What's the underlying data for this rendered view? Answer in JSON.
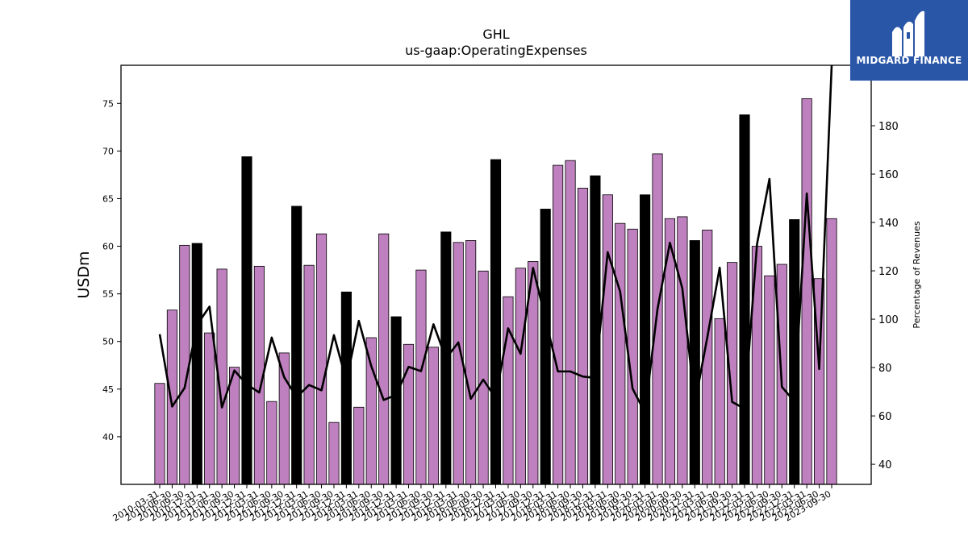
{
  "logo": {
    "text": "MIDGARD FINANCE"
  },
  "chart_data": {
    "type": "bar",
    "title": "GHL",
    "subtitle": "us-gaap:OperatingExpenses",
    "ylabel": "USDm",
    "y2label": "Percentage of Revenues",
    "ylim": [
      35,
      79
    ],
    "y2lim": [
      31.7,
      205
    ],
    "yticks": [
      40,
      45,
      50,
      55,
      60,
      65,
      70,
      75
    ],
    "y2ticks": [
      40,
      60,
      80,
      100,
      120,
      140,
      160,
      180
    ],
    "grid": false,
    "colors": {
      "quarter": "#bf80bf",
      "fiscal_year_end": "#000000",
      "line": "#000000"
    },
    "categories": [
      "2010-03-31",
      "2010-06-30",
      "2010-09-30",
      "2010-12-31",
      "2011-03-31",
      "2011-06-30",
      "2011-09-30",
      "2011-12-31",
      "2012-03-31",
      "2012-06-30",
      "2012-09-30",
      "2012-12-31",
      "2013-03-31",
      "2013-06-30",
      "2013-09-30",
      "2013-12-31",
      "2014-03-31",
      "2014-06-30",
      "2014-09-30",
      "2014-12-31",
      "2015-03-31",
      "2015-06-30",
      "2015-09-30",
      "2015-12-31",
      "2016-03-31",
      "2016-06-30",
      "2016-09-30",
      "2016-12-31",
      "2017-03-31",
      "2017-06-30",
      "2017-09-30",
      "2017-12-31",
      "2018-03-31",
      "2018-06-30",
      "2018-09-30",
      "2018-12-31",
      "2019-03-31",
      "2019-06-30",
      "2019-09-30",
      "2019-12-31",
      "2020-03-31",
      "2020-06-30",
      "2020-09-30",
      "2020-12-31",
      "2021-03-31",
      "2021-06-30",
      "2021-09-30",
      "2021-12-31",
      "2022-03-31",
      "2022-06-30",
      "2022-09-30",
      "2022-12-31",
      "2023-03-31",
      "2023-06-30",
      "2023-09-30"
    ],
    "series": [
      {
        "kind": "bar",
        "values": [
          45.6,
          53.3,
          60.1,
          60.3,
          50.9,
          57.6,
          47.3,
          69.4,
          57.9,
          43.7,
          48.8,
          64.2,
          58.0,
          61.3,
          41.5,
          55.2,
          43.1,
          50.4,
          61.3,
          52.6,
          49.7,
          57.5,
          49.4,
          61.5,
          60.4,
          60.6,
          57.4,
          69.1,
          54.7,
          57.7,
          58.4,
          63.9,
          68.5,
          69.0,
          66.1,
          67.4,
          65.4,
          62.4,
          61.8,
          65.4,
          69.7,
          62.9,
          63.1,
          60.6,
          61.7,
          52.4,
          58.3,
          73.8,
          60.0,
          56.9,
          58.1,
          62.8,
          75.5,
          56.6,
          62.9
        ],
        "fiscal_year_end": [
          false,
          false,
          false,
          true,
          false,
          false,
          false,
          true,
          false,
          false,
          false,
          true,
          false,
          false,
          false,
          true,
          false,
          false,
          false,
          true,
          false,
          false,
          false,
          true,
          false,
          false,
          false,
          true,
          false,
          false,
          false,
          true,
          false,
          false,
          false,
          true,
          false,
          false,
          false,
          true,
          false,
          false,
          false,
          true,
          false,
          false,
          false,
          true,
          false,
          false,
          false,
          true,
          false,
          false,
          false
        ]
      },
      {
        "kind": "line",
        "axis": "right",
        "values": [
          93.8,
          63.9,
          71.6,
          97.7,
          105.2,
          63.5,
          78.8,
          73.0,
          69.7,
          92.4,
          76.0,
          67.8,
          72.8,
          70.6,
          93.4,
          74.5,
          99.3,
          80.6,
          66.6,
          68.7,
          80.3,
          78.5,
          97.9,
          83.8,
          90.4,
          67.1,
          75.0,
          67.4,
          96.2,
          85.7,
          121.2,
          100.1,
          78.4,
          78.4,
          76.3,
          75.7,
          127.7,
          111.4,
          71.3,
          61.3,
          104.1,
          131.6,
          112.7,
          65.0,
          92.3,
          121.3,
          65.8,
          63.0,
          131.0,
          158.0,
          72.0,
          66.0,
          152.0,
          79.4,
          205.0
        ]
      }
    ]
  }
}
